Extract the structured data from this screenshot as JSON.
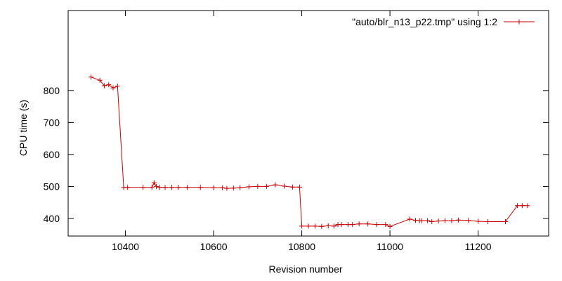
{
  "chart_data": {
    "type": "line",
    "xlabel": "Revision number",
    "ylabel": "CPU time (s)",
    "xlim": [
      10270,
      11360
    ],
    "ylim": [
      345,
      1050
    ],
    "x_ticks": [
      10400,
      10600,
      10800,
      11000,
      11200
    ],
    "y_ticks": [
      400,
      500,
      600,
      700,
      800
    ],
    "x_tick_labels": [
      "10400",
      "10600",
      "10800",
      "11000",
      "11200"
    ],
    "y_tick_labels": [
      "400",
      "500",
      "600",
      "700",
      "800"
    ],
    "grid": false,
    "legend_position": "top-right",
    "series": [
      {
        "name": "\"auto/blr_n13_p22.tmp\" using 1:2",
        "color": "#cc0000",
        "x": [
          10322,
          10342,
          10352,
          10362,
          10372,
          10382,
          10396,
          10405,
          10440,
          10460,
          10465,
          10470,
          10478,
          10490,
          10505,
          10520,
          10540,
          10570,
          10600,
          10620,
          10630,
          10645,
          10660,
          10680,
          10700,
          10720,
          10740,
          10760,
          10779,
          10795,
          10800,
          10815,
          10830,
          10845,
          10860,
          10873,
          10882,
          10890,
          10905,
          10915,
          10930,
          10950,
          10970,
          10990,
          11000,
          11045,
          11058,
          11067,
          11072,
          11085,
          11095,
          11110,
          11125,
          11140,
          11155,
          11178,
          11200,
          11222,
          11262,
          11289,
          11300,
          11312
        ],
        "y": [
          842,
          832,
          815,
          818,
          808,
          814,
          497,
          497,
          497,
          497,
          512,
          500,
          497,
          497,
          497,
          497,
          497,
          497,
          496,
          496,
          494,
          495,
          496,
          499,
          500,
          500,
          505,
          501,
          498,
          498,
          376,
          376,
          376,
          375,
          377,
          376,
          381,
          381,
          381,
          381,
          383,
          383,
          381,
          381,
          375,
          398,
          394,
          393,
          393,
          393,
          390,
          392,
          393,
          393,
          395,
          394,
          391,
          390,
          390,
          440,
          440,
          440
        ]
      }
    ]
  }
}
